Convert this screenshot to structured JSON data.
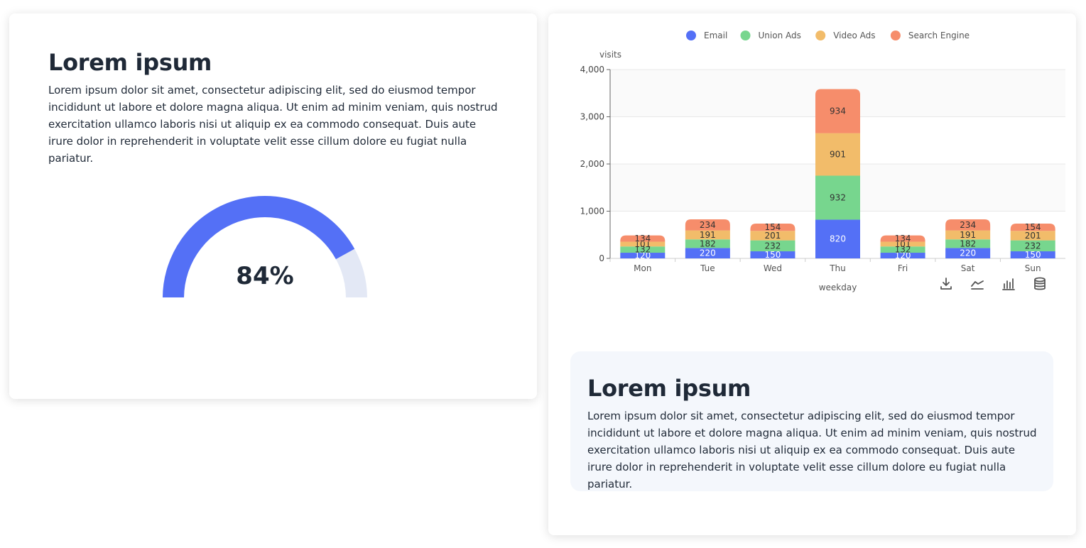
{
  "left_card": {
    "title": "Lorem ipsum",
    "text": "Lorem ipsum dolor sit amet, consectetur adipiscing elit, sed do eiusmod tempor incididunt ut labore et dolore magna aliqua. Ut enim ad minim veniam, quis nostrud exercitation ullamco laboris nisi ut aliquip ex ea commodo consequat. Duis aute irure dolor in reprehenderit in voluptate velit esse cillum dolore eu fugiat nulla pariatur.",
    "gauge": {
      "value": 84,
      "label": "84%",
      "fill_color": "#5470f6",
      "track_color": "#e3e8f5"
    }
  },
  "right_card": {
    "info": {
      "title": "Lorem ipsum",
      "text": "Lorem ipsum dolor sit amet, consectetur adipiscing elit, sed do eiusmod tempor incididunt ut labore et dolore magna aliqua. Ut enim ad minim veniam, quis nostrud exercitation ullamco laboris nisi ut aliquip ex ea commodo consequat. Duis aute irure dolor in reprehenderit in voluptate velit esse cillum dolore eu fugiat nulla pariatur."
    },
    "toolbox": [
      {
        "name": "download-icon"
      },
      {
        "name": "line-chart-icon"
      },
      {
        "name": "bar-chart-icon"
      },
      {
        "name": "database-icon"
      }
    ]
  },
  "chart_data": {
    "type": "bar",
    "stacked": true,
    "xlabel": "weekday",
    "ylabel": "visits",
    "ylim": [
      0,
      4000
    ],
    "yticks": [
      "0",
      "1,000",
      "2,000",
      "3,000",
      "4,000"
    ],
    "ytick_values": [
      0,
      1000,
      2000,
      3000,
      4000
    ],
    "categories": [
      "Mon",
      "Tue",
      "Wed",
      "Thu",
      "Fri",
      "Sat",
      "Sun"
    ],
    "legend_position": "top-center",
    "series": [
      {
        "name": "Email",
        "color": "#5470f6",
        "values": [
          120,
          220,
          150,
          820,
          120,
          220,
          150
        ]
      },
      {
        "name": "Union Ads",
        "color": "#77d68e",
        "values": [
          132,
          182,
          232,
          932,
          132,
          182,
          232
        ]
      },
      {
        "name": "Video Ads",
        "color": "#f2bc6a",
        "values": [
          101,
          191,
          201,
          901,
          101,
          191,
          201
        ]
      },
      {
        "name": "Search Engine",
        "color": "#f68d6b",
        "values": [
          134,
          234,
          154,
          934,
          134,
          234,
          154
        ]
      }
    ]
  }
}
